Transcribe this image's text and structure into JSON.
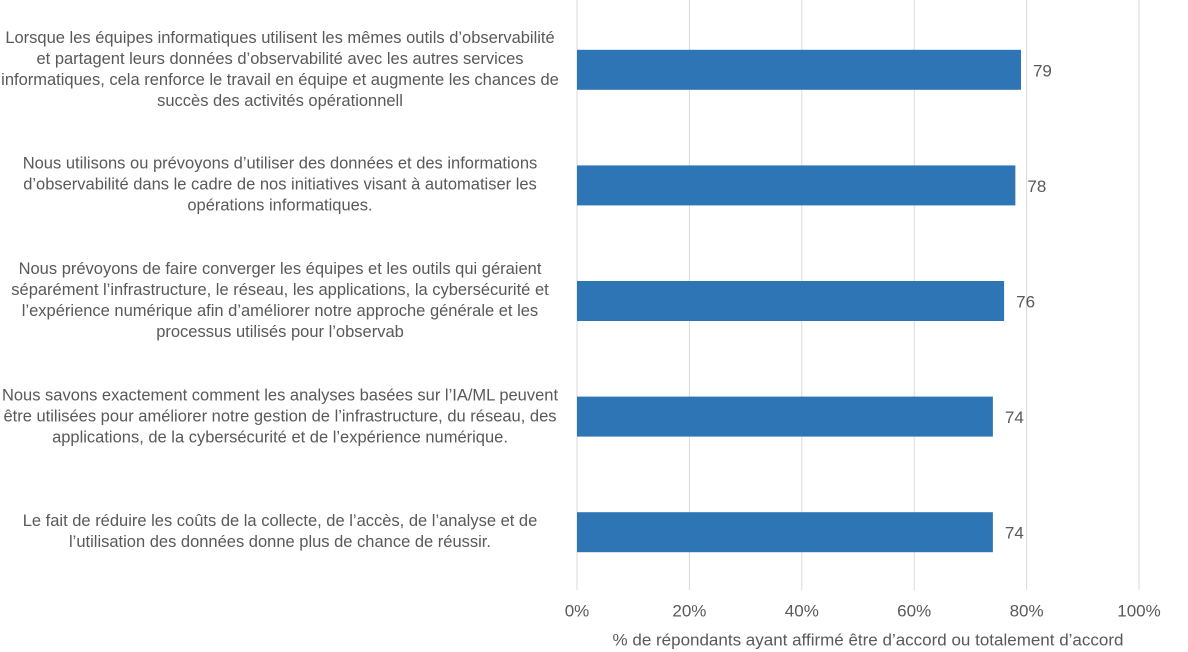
{
  "chart_data": {
    "type": "barh",
    "categories": [
      "Lorsque les équipes informatiques utilisent les mêmes outils d’observabilité et partagent leurs données d’observabilité avec les autres services informatiques, cela renforce le travail en équipe et augmente les chances de succès des activités opérationnell",
      "Nous utilisons ou prévoyons d’utiliser des données et des informations d’observabilité dans le cadre de nos initiatives visant à automatiser les opérations informatiques.",
      "Nous prévoyons de faire converger les équipes et les outils qui géraient séparément l’infrastructure, le réseau, les applications, la cybersécurité et l’expérience numérique afin d’améliorer notre approche générale et les processus utilisés pour l’observab",
      "Nous savons exactement comment les analyses basées sur l’IA/ML peuvent être utilisées pour améliorer notre gestion de l’infrastructure, du réseau, des applications, de la cybersécurité et de l’expérience numérique.",
      "Le fait de réduire les coûts de la collecte, de l’accès, de l’analyse et de l’utilisation des données donne plus de chance de réussir."
    ],
    "values": [
      79,
      78,
      76,
      74,
      74
    ],
    "color": "#2e75b6",
    "xlabel": "% de répondants ayant affirmé être d’accord ou totalement d’accord",
    "xlim": [
      0,
      100
    ],
    "xticks": [
      {
        "value": 0,
        "label": "0%"
      },
      {
        "value": 20,
        "label": "20%"
      },
      {
        "value": 40,
        "label": "40%"
      },
      {
        "value": 60,
        "label": "60%"
      },
      {
        "value": 80,
        "label": "80%"
      },
      {
        "value": 100,
        "label": "100%"
      }
    ],
    "grid": true
  }
}
